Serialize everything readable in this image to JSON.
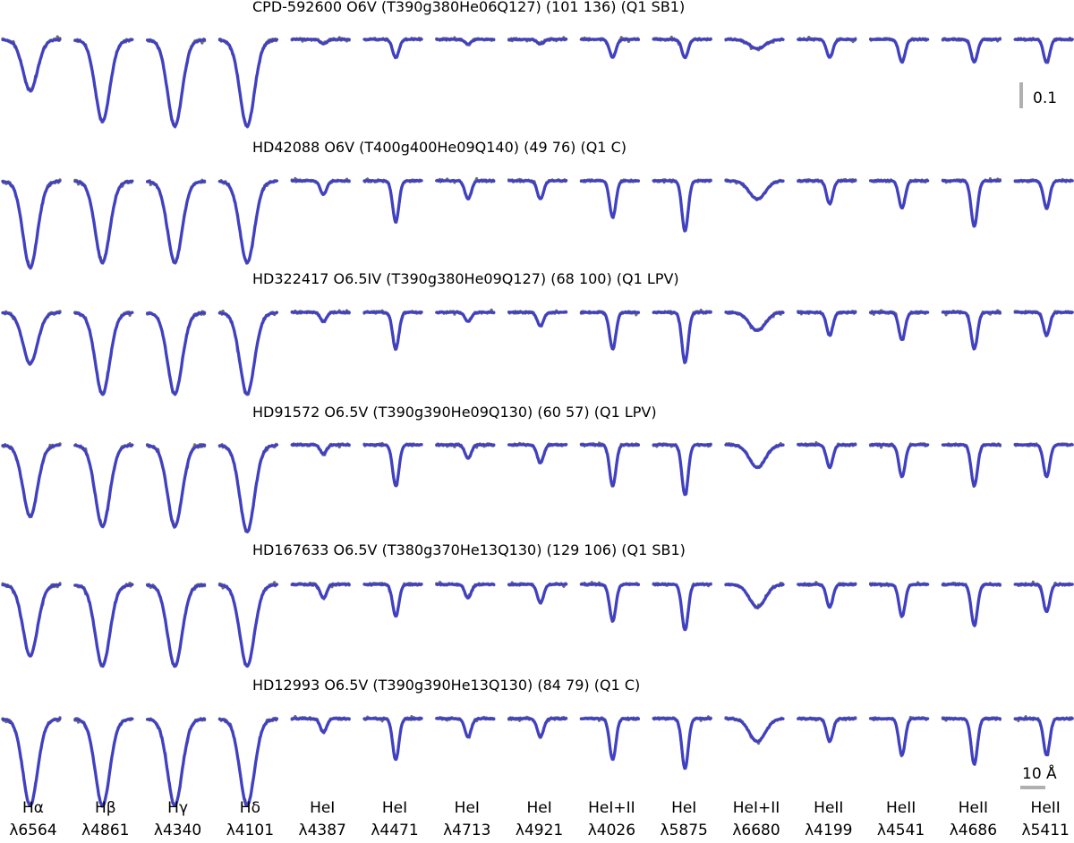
{
  "chart_data": {
    "type": "line",
    "description": "Grid of normalized line profiles: rows are stars, columns are spectral lines; grey = observed spectrum, blue = best-fit model.",
    "colors": {
      "observed": "#6e6e6e",
      "model": "#3a3ad0"
    },
    "rows": [
      {
        "title": "CPD-592600 O6V (T390g380He06Q127) (101 136) (Q1 SB1)",
        "depths": [
          0.1,
          0.16,
          0.17,
          0.17,
          0.01,
          0.04,
          0.01,
          0.01,
          0.04,
          0.04,
          0.02,
          0.04,
          0.05,
          0.05,
          0.05
        ]
      },
      {
        "title": "HD42088 O6V (T400g400He09Q140) (49 76) (Q1 C)",
        "depths": [
          0.17,
          0.16,
          0.16,
          0.16,
          0.03,
          0.09,
          0.04,
          0.04,
          0.08,
          0.11,
          0.04,
          0.05,
          0.06,
          0.1,
          0.06
        ]
      },
      {
        "title": "HD322417 O6.5IV (T390g380He09Q127) (68 100) (Q1 LPV)",
        "depths": [
          0.1,
          0.16,
          0.16,
          0.16,
          0.02,
          0.08,
          0.02,
          0.03,
          0.08,
          0.11,
          0.04,
          0.05,
          0.06,
          0.08,
          0.05
        ]
      },
      {
        "title": "HD91572 O6.5V (T390g390He09Q130) (60 57) (Q1 LPV)",
        "depths": [
          0.14,
          0.16,
          0.16,
          0.17,
          0.02,
          0.09,
          0.03,
          0.04,
          0.09,
          0.11,
          0.05,
          0.05,
          0.07,
          0.09,
          0.07
        ]
      },
      {
        "title": "HD167633 O6.5V (T380g370He13Q130) (129 106) (Q1 SB1)",
        "depths": [
          0.14,
          0.16,
          0.16,
          0.16,
          0.03,
          0.07,
          0.03,
          0.04,
          0.08,
          0.1,
          0.05,
          0.05,
          0.07,
          0.09,
          0.06
        ]
      },
      {
        "title": "HD12993 O6.5V (T390g390He13Q130) (84 79) (Q1 C)",
        "depths": [
          0.17,
          0.17,
          0.17,
          0.17,
          0.03,
          0.09,
          0.04,
          0.04,
          0.09,
          0.11,
          0.05,
          0.05,
          0.08,
          0.1,
          0.08
        ]
      }
    ],
    "columns": [
      {
        "label": "Hα",
        "wavelength": "λ6564"
      },
      {
        "label": "Hβ",
        "wavelength": "λ4861"
      },
      {
        "label": "Hγ",
        "wavelength": "λ4340"
      },
      {
        "label": "Hδ",
        "wavelength": "λ4101"
      },
      {
        "label": "HeI",
        "wavelength": "λ4387"
      },
      {
        "label": "HeI",
        "wavelength": "λ4471"
      },
      {
        "label": "HeI",
        "wavelength": "λ4713"
      },
      {
        "label": "HeI",
        "wavelength": "λ4921"
      },
      {
        "label": "HeI+II",
        "wavelength": "λ4026"
      },
      {
        "label": "HeI",
        "wavelength": "λ5875"
      },
      {
        "label": "HeI+II",
        "wavelength": "λ6680"
      },
      {
        "label": "HeII",
        "wavelength": "λ4199"
      },
      {
        "label": "HeII",
        "wavelength": "λ4541"
      },
      {
        "label": "HeII",
        "wavelength": "λ4686"
      },
      {
        "label": "HeII",
        "wavelength": "λ5411"
      }
    ],
    "scale_bars": {
      "flux_label": "0.1",
      "flux": 0.1,
      "wavelength_label": "10 Å",
      "wavelength": 10
    }
  }
}
